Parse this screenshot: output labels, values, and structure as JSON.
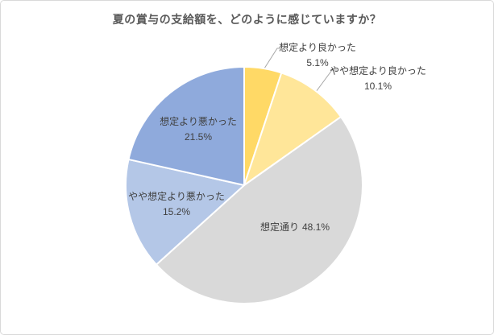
{
  "window": {
    "background_color": "#FFFFFF",
    "border_color": "#D9D9D9"
  },
  "chart_data": {
    "type": "pie",
    "title": "夏の賞与の支給額を、どのように感じていますか？",
    "title_color": "#595959",
    "label_color": "#404040",
    "leader_line_color": "#A6A6A6",
    "slice_border_color": "#FFFFFF",
    "legend": "none",
    "direction": "clockwise",
    "start_angle_deg": 0,
    "total": 100.0,
    "slices": [
      {
        "id": "better",
        "label": "想定より良かった",
        "value": 5.1,
        "pct_display": "5.1%",
        "color": "#FFD966",
        "label_position": "outside-callout"
      },
      {
        "id": "somewhat-better",
        "label": "やや想定より良かった",
        "value": 10.1,
        "pct_display": "10.1%",
        "color": "#FFE699",
        "label_position": "outside-callout"
      },
      {
        "id": "as-expected",
        "label": "想定通り",
        "value": 48.1,
        "pct_display": "48.1%",
        "color": "#D9D9D9",
        "label_position": "inside"
      },
      {
        "id": "somewhat-worse",
        "label": "やや想定より悪かった",
        "value": 15.2,
        "pct_display": "15.2%",
        "color": "#B4C7E7",
        "label_position": "inside"
      },
      {
        "id": "worse",
        "label": "想定より悪かった",
        "value": 21.5,
        "pct_display": "21.5%",
        "color": "#8FAADC",
        "label_position": "inside"
      }
    ]
  }
}
